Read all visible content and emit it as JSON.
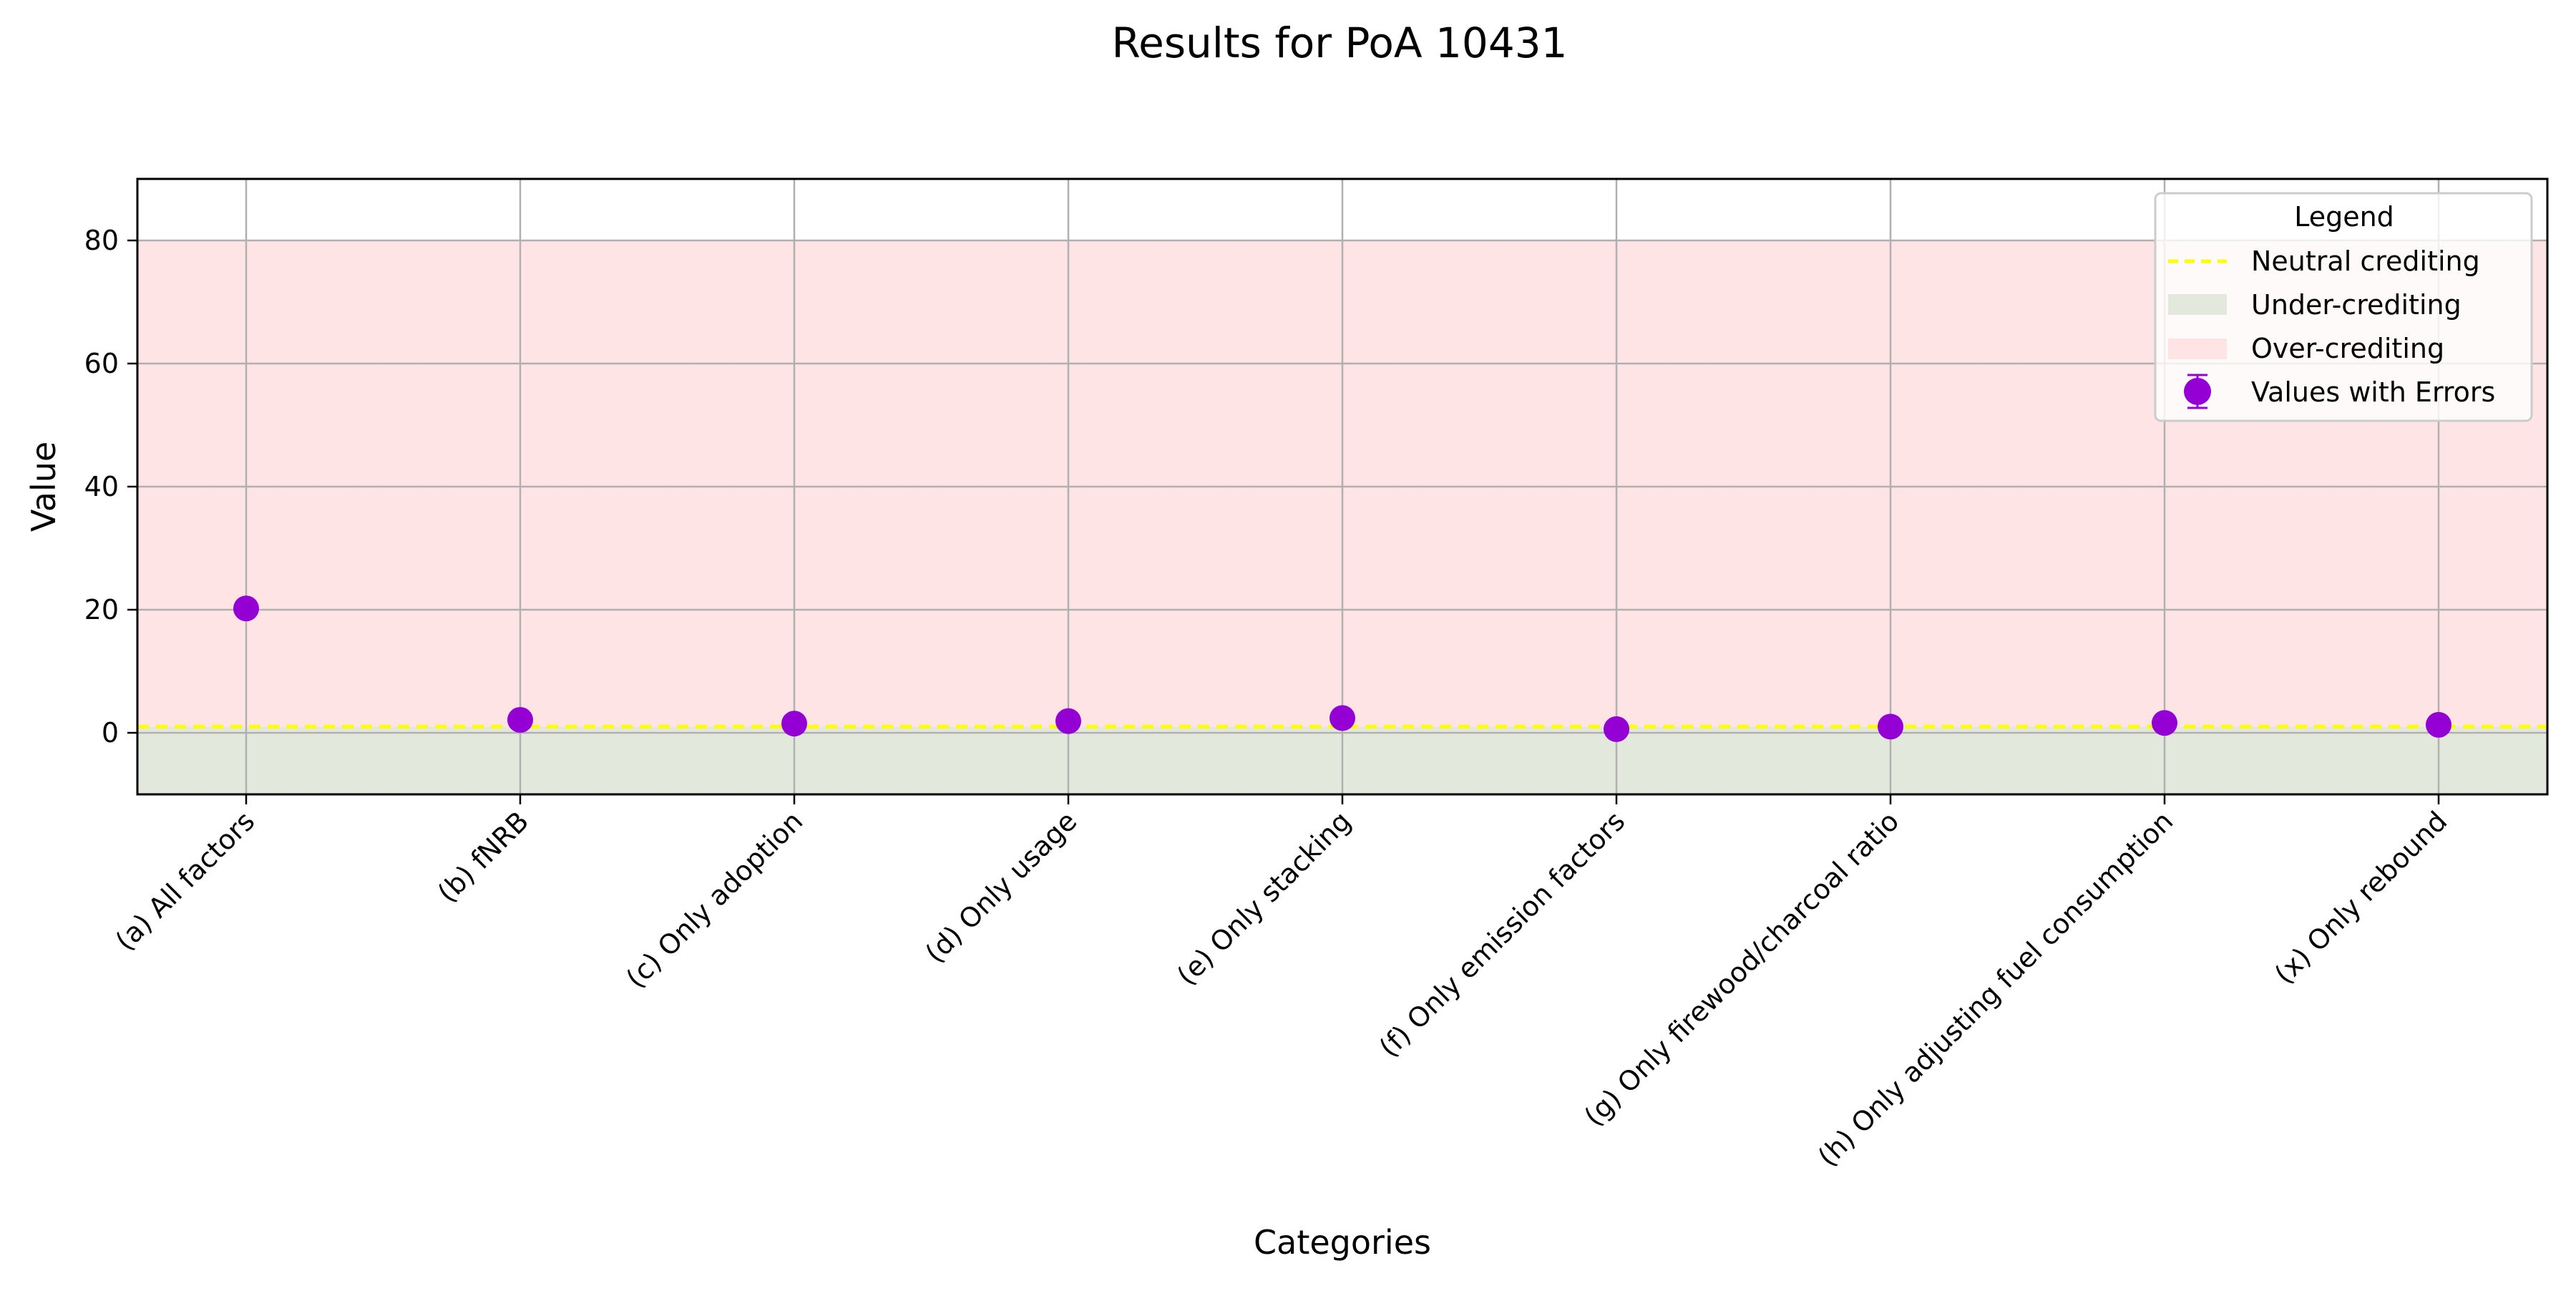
{
  "chart_data": {
    "type": "scatter",
    "title": "Results for PoA 10431",
    "xlabel": "Categories",
    "ylabel": "Value",
    "ylim": [
      -10,
      90
    ],
    "yticks": [
      0,
      20,
      40,
      60,
      80
    ],
    "grid": true,
    "categories": [
      "(a) All factors",
      "(b) fNRB",
      "(c) Only adoption",
      "(d) Only usage",
      "(e) Only stacking",
      "(f) Only emission factors",
      "(g) Only firewood/charcoal ratio",
      "(h) Only adjusting fuel consumption",
      "(x) Only rebound"
    ],
    "series": [
      {
        "name": "Values with Errors",
        "values": [
          20.2,
          2.1,
          1.5,
          1.9,
          2.4,
          0.6,
          1.0,
          1.6,
          1.3
        ],
        "color": "#9400d3"
      }
    ],
    "neutral_line": {
      "label": "Neutral crediting",
      "y": 1,
      "color": "#ffff00",
      "style": "dashed"
    },
    "regions": [
      {
        "label": "Under-crediting",
        "y_range": [
          -10,
          1
        ],
        "color": "#e2e9dc"
      },
      {
        "label": "Over-crediting",
        "y_range": [
          1,
          80
        ],
        "color": "#ffe4e6"
      }
    ],
    "legend": {
      "title": "Legend",
      "position": "top-right",
      "entries": [
        "Neutral crediting",
        "Under-crediting",
        "Over-crediting",
        "Values with Errors"
      ]
    }
  }
}
